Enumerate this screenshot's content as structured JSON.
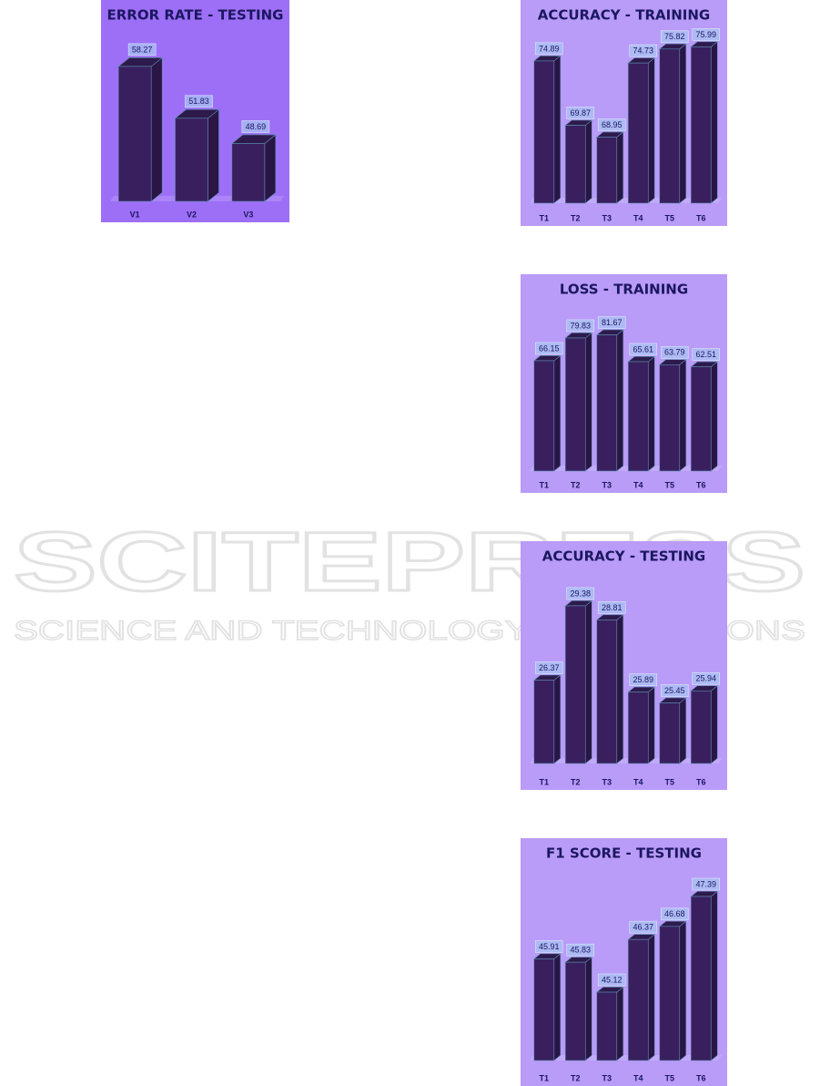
{
  "chart_data": [
    {
      "type": "bar",
      "title": "ERROR RATE - TESTING",
      "categories": [
        "V1",
        "V2",
        "V3"
      ],
      "values": [
        58.27,
        51.83,
        48.69
      ],
      "ylim": [
        41.5,
        62
      ],
      "background": "#9d6ff6",
      "color": "#3a1f5f"
    },
    {
      "type": "bar",
      "title": "ACCURACY - TRAINING",
      "categories": [
        "T1",
        "T2",
        "T3",
        "T4",
        "T5",
        "T6"
      ],
      "values": [
        74.89,
        69.87,
        68.95,
        74.73,
        75.82,
        75.99
      ],
      "ylim": [
        63.8,
        76.8
      ],
      "background": "#b99bf8",
      "color": "#3a1f5f"
    },
    {
      "type": "bar",
      "title": "LOSS - TRAINING",
      "categories": [
        "T1",
        "T2",
        "T3",
        "T4",
        "T5",
        "T6"
      ],
      "values": [
        66.15,
        79.83,
        81.67,
        65.61,
        63.79,
        62.51
      ],
      "ylim": [
        0,
        94
      ],
      "background": "#b99bf8",
      "color": "#3a1f5f"
    },
    {
      "type": "bar",
      "title": "ACCURACY - TESTING",
      "categories": [
        "T1",
        "T2",
        "T3",
        "T4",
        "T5",
        "T6"
      ],
      "values": [
        26.37,
        29.38,
        28.81,
        25.89,
        25.45,
        25.94
      ],
      "ylim": [
        23,
        30.3
      ],
      "background": "#b99bf8",
      "color": "#3a1f5f"
    },
    {
      "type": "bar",
      "title": "F1 SCORE - TESTING",
      "categories": [
        "T1",
        "T2",
        "T3",
        "T4",
        "T5",
        "T6"
      ],
      "values": [
        45.91,
        45.83,
        45.12,
        46.37,
        46.68,
        47.39
      ],
      "ylim": [
        43.5,
        47.8
      ],
      "background": "#b99bf8",
      "color": "#3a1f5f"
    }
  ],
  "watermark": {
    "title": "SCITEPRESS",
    "subtitle": "SCIENCE AND TECHNOLOGY PUBLICATIONS"
  }
}
